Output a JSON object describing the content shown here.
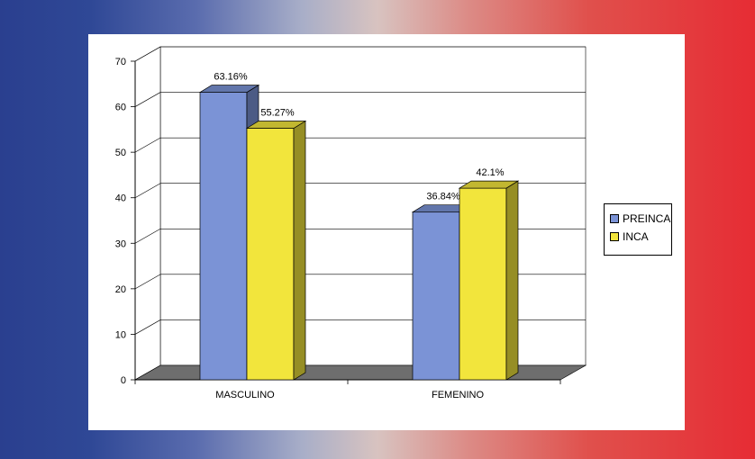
{
  "chart_data": {
    "type": "bar",
    "categories": [
      "MASCULINO",
      "FEMENINO"
    ],
    "series": [
      {
        "name": "PREINCA",
        "values": [
          63.16,
          36.84
        ],
        "labels": [
          "63.16%",
          "36.84%"
        ],
        "color": "#7b93d6"
      },
      {
        "name": "INCA",
        "values": [
          55.27,
          42.1
        ],
        "labels": [
          "55.27%",
          "42.1%"
        ],
        "color": "#f2e53c"
      }
    ],
    "title": "",
    "xlabel": "",
    "ylabel": "",
    "ylim": [
      0,
      70
    ],
    "yticks": [
      0,
      10,
      20,
      30,
      40,
      50,
      60,
      70
    ],
    "grid": true,
    "three_d": true,
    "legend": "right"
  }
}
